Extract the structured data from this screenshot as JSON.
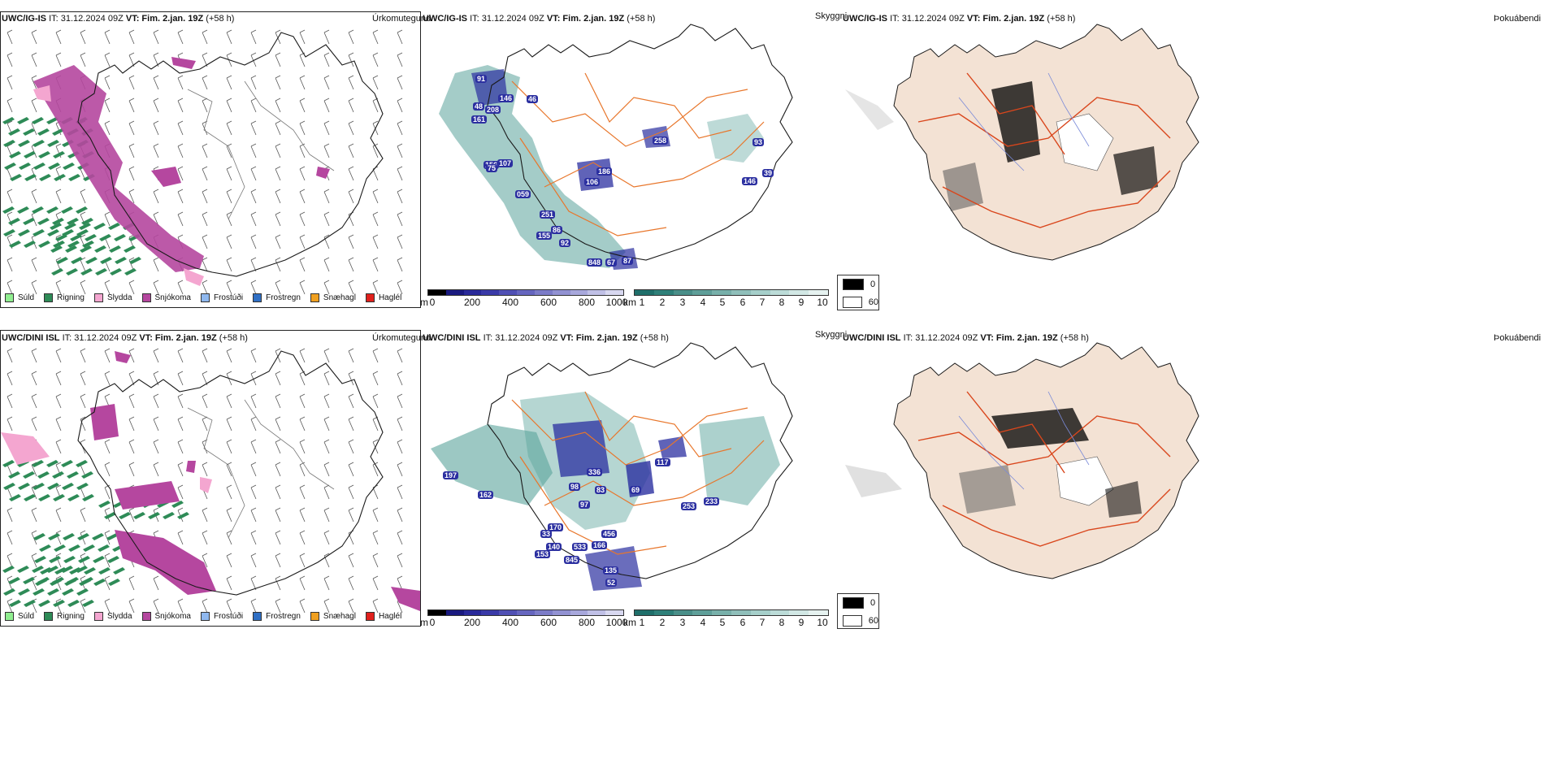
{
  "panels": {
    "top": {
      "precip": {
        "model": "UWC/IG-IS",
        "it": "IT: 31.12.2024 09Z",
        "vt": "VT: Fim. 2.jan. 19Z",
        "lead": "(+58 h)",
        "corner": "Úrkomutegund"
      },
      "vis": {
        "model": "UWC/IG-IS",
        "it": "IT: 31.12.2024 09Z",
        "vt": "VT: Fim. 2.jan. 19Z",
        "lead": "(+58 h)"
      },
      "cloud": {
        "pre_label": "Skyggni",
        "model": "UWC/IG-IS",
        "it": "IT: 31.12.2024 09Z",
        "vt": "VT: Fim. 2.jan. 19Z",
        "lead": "(+58 h)",
        "corner": "Þokuábendi"
      },
      "markers": [
        "91",
        "146",
        "48",
        "208",
        "161",
        "46",
        "156",
        "107",
        "059",
        "186",
        "106",
        "251",
        "86",
        "155",
        "92",
        "848",
        "67",
        "87",
        "75",
        "258",
        "93",
        "146",
        "39"
      ]
    },
    "bottom": {
      "precip": {
        "model": "UWC/DINI ISL",
        "it": "IT: 31.12.2024 09Z",
        "vt": "VT: Fim. 2.jan. 19Z",
        "lead": "(+58 h)",
        "corner": "Úrkomutegund"
      },
      "vis": {
        "model": "UWC/DINI ISL",
        "it": "IT: 31.12.2024 09Z",
        "vt": "VT: Fim. 2.jan. 19Z",
        "lead": "(+58 h)"
      },
      "cloud": {
        "pre_label": "Skyggni",
        "model": "UWC/DINI ISL",
        "it": "IT: 31.12.2024 09Z",
        "vt": "VT: Fim. 2.jan. 19Z",
        "lead": "(+58 h)",
        "corner": "Þokuábendi"
      },
      "markers": [
        "197",
        "162",
        "117",
        "69",
        "336",
        "97",
        "83",
        "98",
        "253",
        "170",
        "140",
        "153",
        "845",
        "533",
        "166",
        "456",
        "135",
        "52",
        "33",
        "233"
      ]
    }
  },
  "precip_legend": [
    {
      "label": "Súld",
      "color": "#90ee90"
    },
    {
      "label": "Rigning",
      "color": "#2e8b57"
    },
    {
      "label": "Slydda",
      "color": "#f4a6d0"
    },
    {
      "label": "Snjókoma",
      "color": "#b5479f"
    },
    {
      "label": "Frostúði",
      "color": "#8fb8ef"
    },
    {
      "label": "Frostregn",
      "color": "#2f6fc4"
    },
    {
      "label": "Snæhagl",
      "color": "#f0a020"
    },
    {
      "label": "Haglél",
      "color": "#e0201c"
    }
  ],
  "ceiling_scale": {
    "unit": "m",
    "ticks": [
      "0",
      "200",
      "400",
      "600",
      "800",
      "1000"
    ],
    "colors": [
      "#000000",
      "#1a1a80",
      "#2a2a9a",
      "#3a3aa8",
      "#5050b4",
      "#6666bf",
      "#7c7cc8",
      "#9292d2",
      "#a8a8dc",
      "#c0c0e6",
      "#d8d8f0"
    ]
  },
  "visibility_scale": {
    "unit": "km",
    "ticks": [
      "1",
      "2",
      "3",
      "4",
      "5",
      "6",
      "7",
      "8",
      "9",
      "10"
    ],
    "colors": [
      "#1f6f6a",
      "#2f8079",
      "#4a8f89",
      "#5f9f99",
      "#78b0aa",
      "#90bfba",
      "#a6cfca",
      "#bcdcd8",
      "#d2e8e5",
      "#e6f2f0"
    ]
  },
  "fog_scale": {
    "low": "0",
    "high": "60",
    "low_color": "#000000",
    "high_color": "#ffffff"
  },
  "colors": {
    "land_fill": "#f3e2d4",
    "road": "#e8762b",
    "road_red": "#d9461c",
    "coast": "#1a1a1a",
    "rain": "#2e8b57",
    "snow": "#b5479f",
    "sleet": "#f4a6d0",
    "vis_teal": "#5aa39b",
    "ceiling_blue": "#2b2fa0"
  }
}
